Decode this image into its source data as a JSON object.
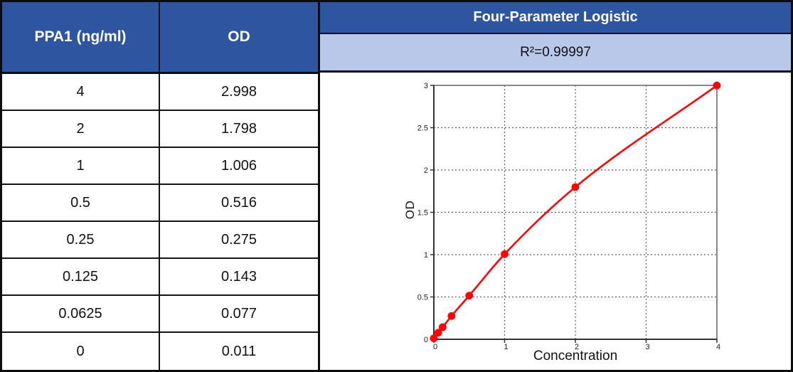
{
  "table": {
    "headers": {
      "concentration": "PPA1 (ng/ml)",
      "od": "OD"
    },
    "rows": [
      {
        "concentration": "4",
        "od": "2.998"
      },
      {
        "concentration": "2",
        "od": "1.798"
      },
      {
        "concentration": "1",
        "od": "1.006"
      },
      {
        "concentration": "0.5",
        "od": "0.516"
      },
      {
        "concentration": "0.25",
        "od": "0.275"
      },
      {
        "concentration": "0.125",
        "od": "0.143"
      },
      {
        "concentration": "0.0625",
        "od": "0.077"
      },
      {
        "concentration": "0",
        "od": "0.011"
      }
    ]
  },
  "fit_panel": {
    "title": "Four-Parameter Logistic",
    "r_squared": "R²=0.99997"
  },
  "chart_data": {
    "type": "line",
    "x": [
      0,
      0.0625,
      0.125,
      0.25,
      0.5,
      1,
      2,
      4
    ],
    "series": [
      {
        "name": "standard-curve",
        "values": [
          0.011,
          0.077,
          0.143,
          0.275,
          0.516,
          1.006,
          1.798,
          2.998
        ]
      }
    ],
    "title": "Four-Parameter Logistic",
    "xlabel": "Concentration",
    "ylabel": "OD",
    "xlim": [
      0,
      4
    ],
    "ylim": [
      0,
      3
    ],
    "xticks": [
      0,
      1,
      2,
      3,
      4
    ],
    "xtick_labels": [
      "0",
      "1",
      "2",
      "3",
      "4"
    ],
    "yticks": [
      0,
      0.5,
      1,
      1.5,
      2,
      2.5,
      3
    ],
    "ytick_labels": [
      "0",
      "0.5",
      "1",
      "1.5",
      "2",
      "2.5",
      "3"
    ],
    "grid": "dotted",
    "legend": "none",
    "line_color": "#FF0404",
    "marker_color": "#FF0404"
  },
  "colors": {
    "header_blue": "#2D55A0",
    "band_blue": "#B9C8E9",
    "border_black": "#0C0C0C",
    "grid_gray": "#606060",
    "curve_red": "#FF0404"
  }
}
